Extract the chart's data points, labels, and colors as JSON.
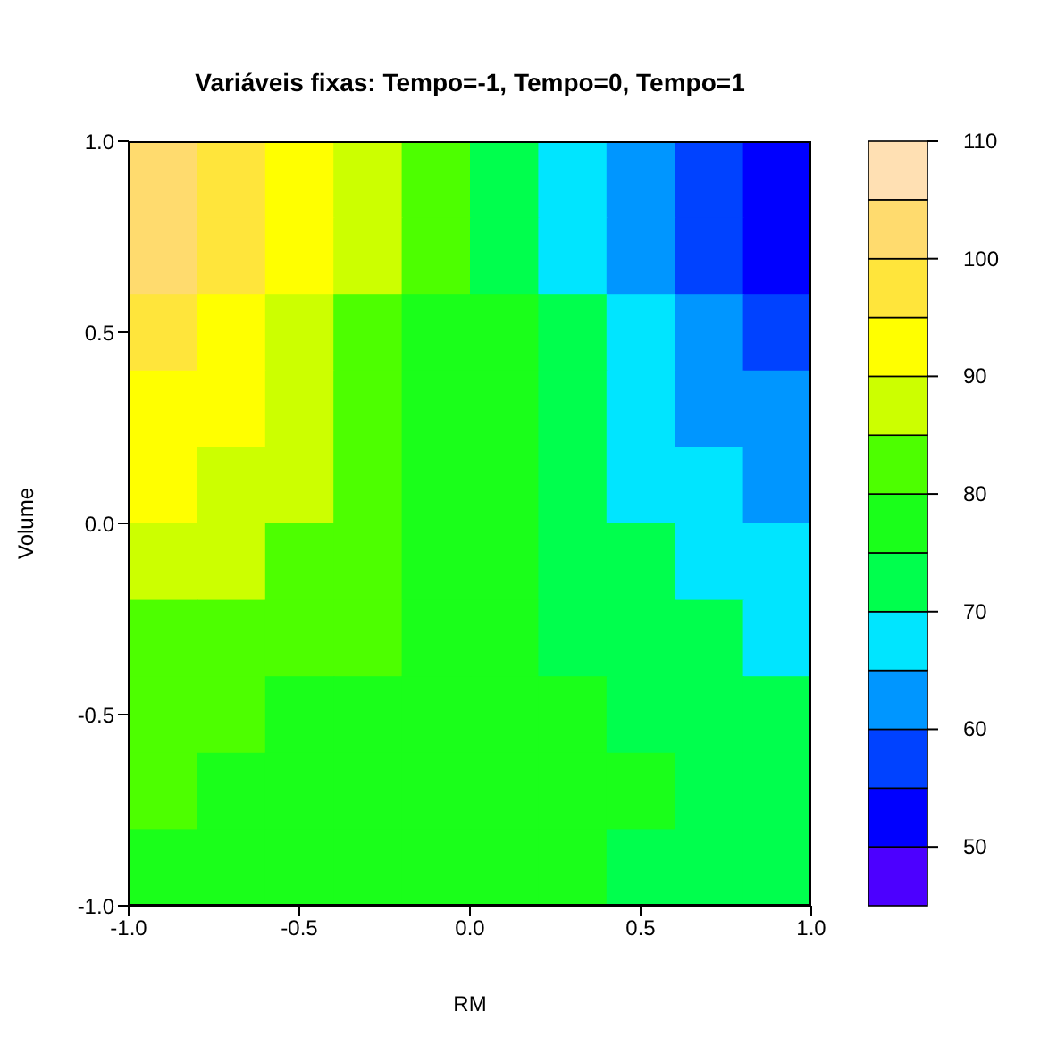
{
  "chart_data": {
    "type": "heatmap",
    "title": "Variáveis fixas: Tempo=-1, Tempo=0, Tempo=1",
    "xlabel": "RM",
    "ylabel": "Volume",
    "xlim": [
      -1,
      1
    ],
    "xticks": [
      {
        "value": -1,
        "label": "-1.0"
      },
      {
        "value": -0.5,
        "label": "-0.5"
      },
      {
        "value": 0,
        "label": "0.0"
      },
      {
        "value": 0.5,
        "label": "0.5"
      },
      {
        "value": 1,
        "label": "1.0"
      }
    ],
    "ylim": [
      -1,
      1
    ],
    "yticks": [
      {
        "value": -1,
        "label": "-1.0"
      },
      {
        "value": -0.5,
        "label": "-0.5"
      },
      {
        "value": 0,
        "label": "0.0"
      },
      {
        "value": 0.5,
        "label": "0.5"
      },
      {
        "value": 1,
        "label": "1.0"
      }
    ],
    "clim": [
      45,
      110
    ],
    "cticks": [
      50,
      60,
      70,
      80,
      90,
      100,
      110
    ],
    "colors": [
      "#4c00ff",
      "#0000ff",
      "#0042ff",
      "#0096ff",
      "#00e5ff",
      "#00ff4d",
      "#1aff1a",
      "#4dff00",
      "#ccff00",
      "#ffff00",
      "#ffe53b",
      "#ffdb6e",
      "#ffe0b3"
    ],
    "cells": [
      [
        103,
        97,
        91,
        86,
        80,
        74,
        68,
        63,
        57,
        51
      ],
      [
        100,
        95,
        90,
        85,
        80,
        74,
        69,
        64,
        59,
        54
      ],
      [
        97,
        92,
        88,
        84,
        79,
        75,
        70,
        66,
        62,
        57
      ],
      [
        94,
        90,
        86,
        83,
        79,
        75,
        71,
        68,
        64,
        60
      ],
      [
        91,
        88,
        85,
        82,
        79,
        75,
        72,
        69,
        66,
        63
      ],
      [
        88,
        85,
        83,
        81,
        78,
        76,
        73,
        71,
        68,
        66
      ],
      [
        84,
        83,
        81,
        80,
        78,
        76,
        74,
        72,
        70,
        68
      ],
      [
        81,
        80,
        79,
        79,
        78,
        76,
        75,
        73,
        72,
        70
      ],
      [
        80,
        79,
        78,
        78,
        77,
        77,
        76,
        75,
        74,
        72
      ],
      [
        76,
        75,
        76,
        77,
        77,
        77,
        77,
        74,
        73,
        72
      ]
    ]
  }
}
